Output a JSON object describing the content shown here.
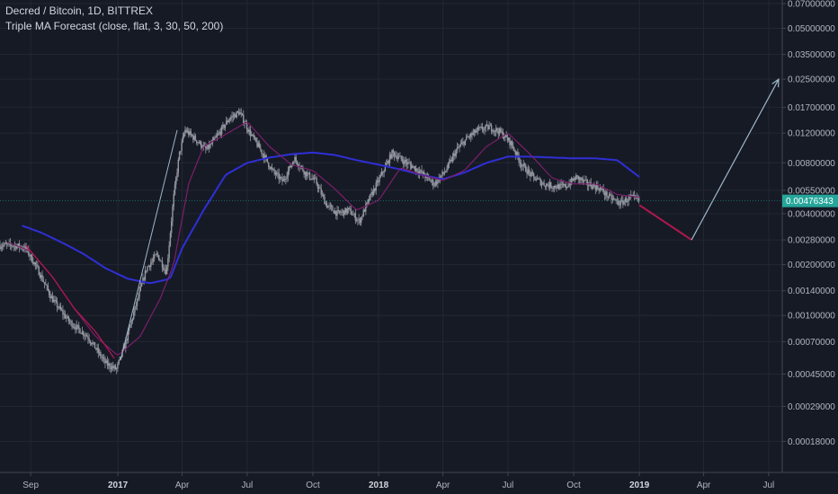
{
  "legend": {
    "line1": "Decred / Bitcoin, 1D, BITTREX",
    "line2": "Triple MA Forecast (close, flat, 3, 30, 50, 200)"
  },
  "colors": {
    "background": "#161a25",
    "grid": "#232733",
    "candles": "#9598a1",
    "ma_fast": "#7b1f6a",
    "ma_slow": "#2f2fd6",
    "forecast_down": "#b0174f",
    "forecast_up": "#9fb7c9",
    "current_price": "#26a69a"
  },
  "chart_data": {
    "type": "line",
    "title": "Decred / Bitcoin, 1D, BITTREX",
    "indicator": "Triple MA Forecast (close, flat, 3, 30, 50, 200)",
    "y_scale": "log",
    "ylim": [
      0.00013,
      0.07
    ],
    "y_ticks": [
      "0.07000000",
      "0.05000000",
      "0.03500000",
      "0.02500000",
      "0.01700000",
      "0.01200000",
      "0.00800000",
      "0.00550000",
      "0.00400000",
      "0.00280000",
      "0.00200000",
      "0.00140000",
      "0.00100000",
      "0.00070000",
      "0.00045000",
      "0.00029000",
      "0.00018000"
    ],
    "x_ticks": [
      {
        "label": "Sep",
        "date": "2016-09-01",
        "bold": false
      },
      {
        "label": "2017",
        "date": "2017-01-01",
        "bold": true
      },
      {
        "label": "Apr",
        "date": "2017-04-01",
        "bold": false
      },
      {
        "label": "Jul",
        "date": "2017-07-01",
        "bold": false
      },
      {
        "label": "Oct",
        "date": "2017-10-01",
        "bold": false
      },
      {
        "label": "2018",
        "date": "2018-01-01",
        "bold": true
      },
      {
        "label": "Apr",
        "date": "2018-04-01",
        "bold": false
      },
      {
        "label": "Jul",
        "date": "2018-07-01",
        "bold": false
      },
      {
        "label": "Oct",
        "date": "2018-10-01",
        "bold": false
      },
      {
        "label": "2019",
        "date": "2019-01-01",
        "bold": true
      },
      {
        "label": "Apr",
        "date": "2019-04-01",
        "bold": false
      },
      {
        "label": "Jul",
        "date": "2019-07-01",
        "bold": false
      }
    ],
    "xlim": [
      "2016-07-20",
      "2019-07-20"
    ],
    "current_price": "0.00476343",
    "series": [
      {
        "role": "price",
        "x": [
          "2016-07-20",
          "2016-08-10",
          "2016-08-25",
          "2016-09-10",
          "2016-10-01",
          "2016-10-25",
          "2016-11-20",
          "2016-12-15",
          "2016-12-30",
          "2017-01-10",
          "2017-01-25",
          "2017-02-10",
          "2017-02-25",
          "2017-03-10",
          "2017-03-20",
          "2017-03-28",
          "2017-04-05",
          "2017-04-20",
          "2017-05-05",
          "2017-05-20",
          "2017-06-05",
          "2017-06-20",
          "2017-07-05",
          "2017-07-20",
          "2017-08-05",
          "2017-08-20",
          "2017-09-05",
          "2017-09-20",
          "2017-10-05",
          "2017-10-20",
          "2017-11-05",
          "2017-11-20",
          "2017-12-05",
          "2017-12-20",
          "2018-01-05",
          "2018-01-20",
          "2018-02-05",
          "2018-02-20",
          "2018-03-05",
          "2018-03-20",
          "2018-04-05",
          "2018-04-20",
          "2018-05-05",
          "2018-05-20",
          "2018-06-05",
          "2018-06-20",
          "2018-07-05",
          "2018-07-20",
          "2018-08-05",
          "2018-08-20",
          "2018-09-05",
          "2018-09-20",
          "2018-10-05",
          "2018-10-20",
          "2018-11-05",
          "2018-11-20",
          "2018-12-05",
          "2018-12-20",
          "2019-01-01"
        ],
        "values": [
          0.0026,
          0.0026,
          0.0025,
          0.0019,
          0.00125,
          0.00092,
          0.00075,
          0.00052,
          0.00048,
          0.00065,
          0.0011,
          0.0019,
          0.0023,
          0.0018,
          0.005,
          0.009,
          0.0125,
          0.011,
          0.0095,
          0.0115,
          0.0145,
          0.016,
          0.012,
          0.0095,
          0.0072,
          0.0062,
          0.0085,
          0.007,
          0.0062,
          0.0045,
          0.004,
          0.0042,
          0.0036,
          0.005,
          0.0068,
          0.0092,
          0.0082,
          0.0075,
          0.0068,
          0.006,
          0.0072,
          0.0095,
          0.0112,
          0.0125,
          0.013,
          0.0122,
          0.0105,
          0.0078,
          0.0066,
          0.006,
          0.0058,
          0.0058,
          0.0066,
          0.006,
          0.0057,
          0.005,
          0.0046,
          0.005,
          0.0048
        ]
      },
      {
        "role": "ma-fast",
        "x": [
          "2016-08-01",
          "2016-09-01",
          "2016-10-01",
          "2016-11-01",
          "2016-12-01",
          "2017-01-01",
          "2017-02-01",
          "2017-03-01",
          "2017-03-20",
          "2017-04-10",
          "2017-05-01",
          "2017-06-01",
          "2017-07-01",
          "2017-08-01",
          "2017-09-01",
          "2017-10-01",
          "2017-11-01",
          "2017-12-01",
          "2018-01-01",
          "2018-02-01",
          "2018-03-01",
          "2018-04-01",
          "2018-05-01",
          "2018-06-01",
          "2018-07-01",
          "2018-08-01",
          "2018-09-01",
          "2018-10-01",
          "2018-11-01",
          "2018-12-01",
          "2019-01-01"
        ],
        "values": [
          0.0027,
          0.0024,
          0.0017,
          0.0011,
          0.00075,
          0.00058,
          0.00075,
          0.00125,
          0.002,
          0.006,
          0.01,
          0.0118,
          0.014,
          0.01,
          0.0078,
          0.0072,
          0.0056,
          0.0042,
          0.0048,
          0.0075,
          0.0068,
          0.0063,
          0.0072,
          0.01,
          0.012,
          0.009,
          0.0065,
          0.006,
          0.006,
          0.0052,
          0.005
        ]
      },
      {
        "role": "ma-slow",
        "x": [
          "2016-08-20",
          "2016-09-15",
          "2016-10-15",
          "2016-11-15",
          "2016-12-15",
          "2017-01-15",
          "2017-02-15",
          "2017-03-15",
          "2017-04-01",
          "2017-05-01",
          "2017-06-01",
          "2017-07-01",
          "2017-08-01",
          "2017-09-01",
          "2017-10-01",
          "2017-11-01",
          "2017-12-01",
          "2018-01-01",
          "2018-02-01",
          "2018-03-01",
          "2018-04-01",
          "2018-05-01",
          "2018-06-01",
          "2018-07-01",
          "2018-08-01",
          "2018-09-01",
          "2018-10-01",
          "2018-11-01",
          "2018-12-01",
          "2019-01-01"
        ],
        "values": [
          0.0034,
          0.0031,
          0.0027,
          0.0023,
          0.0019,
          0.00165,
          0.00155,
          0.00165,
          0.0025,
          0.0042,
          0.0068,
          0.008,
          0.0086,
          0.009,
          0.0092,
          0.0089,
          0.0083,
          0.0078,
          0.0073,
          0.0068,
          0.0064,
          0.007,
          0.008,
          0.0087,
          0.0087,
          0.0086,
          0.0085,
          0.0085,
          0.0083,
          0.0066
        ]
      },
      {
        "role": "forecast-down",
        "x": [
          "2019-01-01",
          "2019-03-15"
        ],
        "values": [
          0.0045,
          0.0028
        ]
      },
      {
        "role": "forecast-up",
        "x": [
          "2019-03-15",
          "2019-07-15"
        ],
        "values": [
          0.0028,
          0.025
        ]
      }
    ]
  }
}
